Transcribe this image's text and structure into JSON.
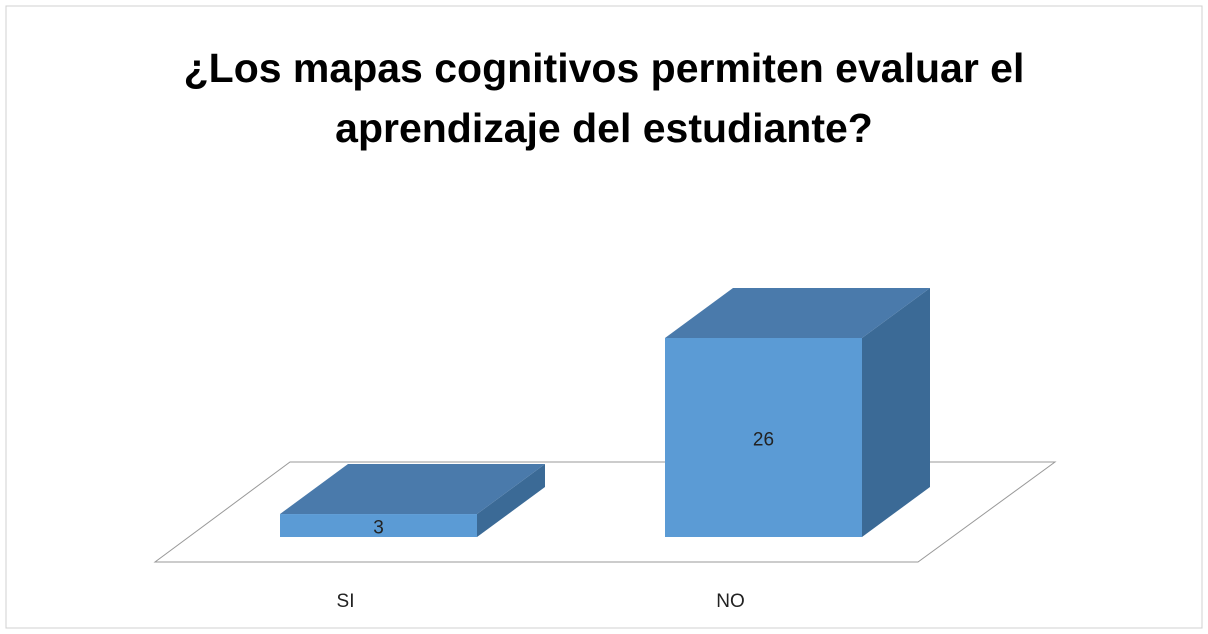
{
  "chart_data": {
    "type": "bar3d",
    "title": "¿Los mapas cognitivos permiten evaluar el aprendizaje del estudiante?",
    "categories": [
      "SI",
      "NO"
    ],
    "values": [
      3,
      26
    ],
    "color": "#5b9bd5"
  }
}
